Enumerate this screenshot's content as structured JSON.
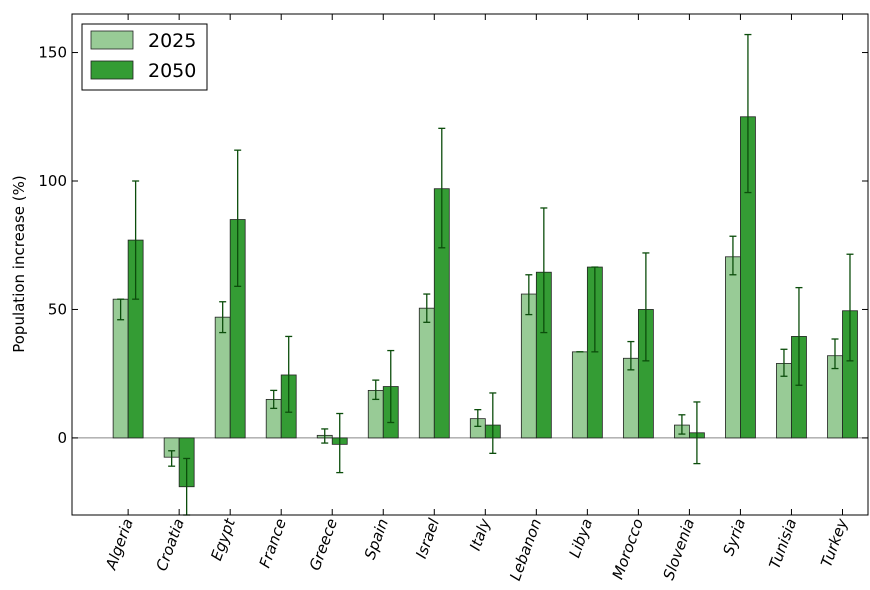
{
  "chart_data": {
    "type": "bar",
    "title": "",
    "xlabel": "",
    "ylabel": "Population increase (%)",
    "ylim": [
      -30,
      165
    ],
    "yticks": [
      0,
      50,
      100,
      150
    ],
    "zero_line": true,
    "grid": false,
    "legend_position": "top-left",
    "categories": [
      "Algeria",
      "Croatia",
      "Egypt",
      "France",
      "Greece",
      "Spain",
      "Israel",
      "Italy",
      "Lebanon",
      "Libya",
      "Morocco",
      "Slovenia",
      "Syria",
      "Tunisia",
      "Turkey"
    ],
    "series": [
      {
        "name": "2025",
        "color": "#98cb96",
        "values": [
          54,
          -7.5,
          47,
          15,
          1,
          18.5,
          50.5,
          7.5,
          56,
          33.5,
          31,
          5,
          70.5,
          29,
          32
        ],
        "err_low": [
          46,
          -11,
          41,
          11.5,
          -2,
          15,
          45,
          4.5,
          48,
          33.5,
          26.5,
          1.5,
          63.5,
          24,
          27
        ],
        "err_high": [
          54,
          -5,
          53,
          18.5,
          3.5,
          22.5,
          56,
          11,
          63.5,
          33.5,
          37.5,
          9,
          78.5,
          34.5,
          38.5
        ]
      },
      {
        "name": "2050",
        "color": "#349c34",
        "values": [
          77,
          -19,
          85,
          24.5,
          -2.5,
          20,
          97,
          5,
          64.5,
          66.5,
          50,
          2,
          125,
          39.5,
          49.5
        ],
        "err_low": [
          54,
          -30,
          59,
          10,
          -13.5,
          6,
          74,
          -6,
          41,
          33.5,
          30,
          -10,
          95.5,
          20.5,
          30
        ],
        "err_high": [
          100,
          -8,
          112,
          39.5,
          9.5,
          34,
          120.5,
          17.5,
          89.5,
          66.5,
          72,
          14,
          157,
          58.5,
          71.5
        ]
      }
    ]
  }
}
